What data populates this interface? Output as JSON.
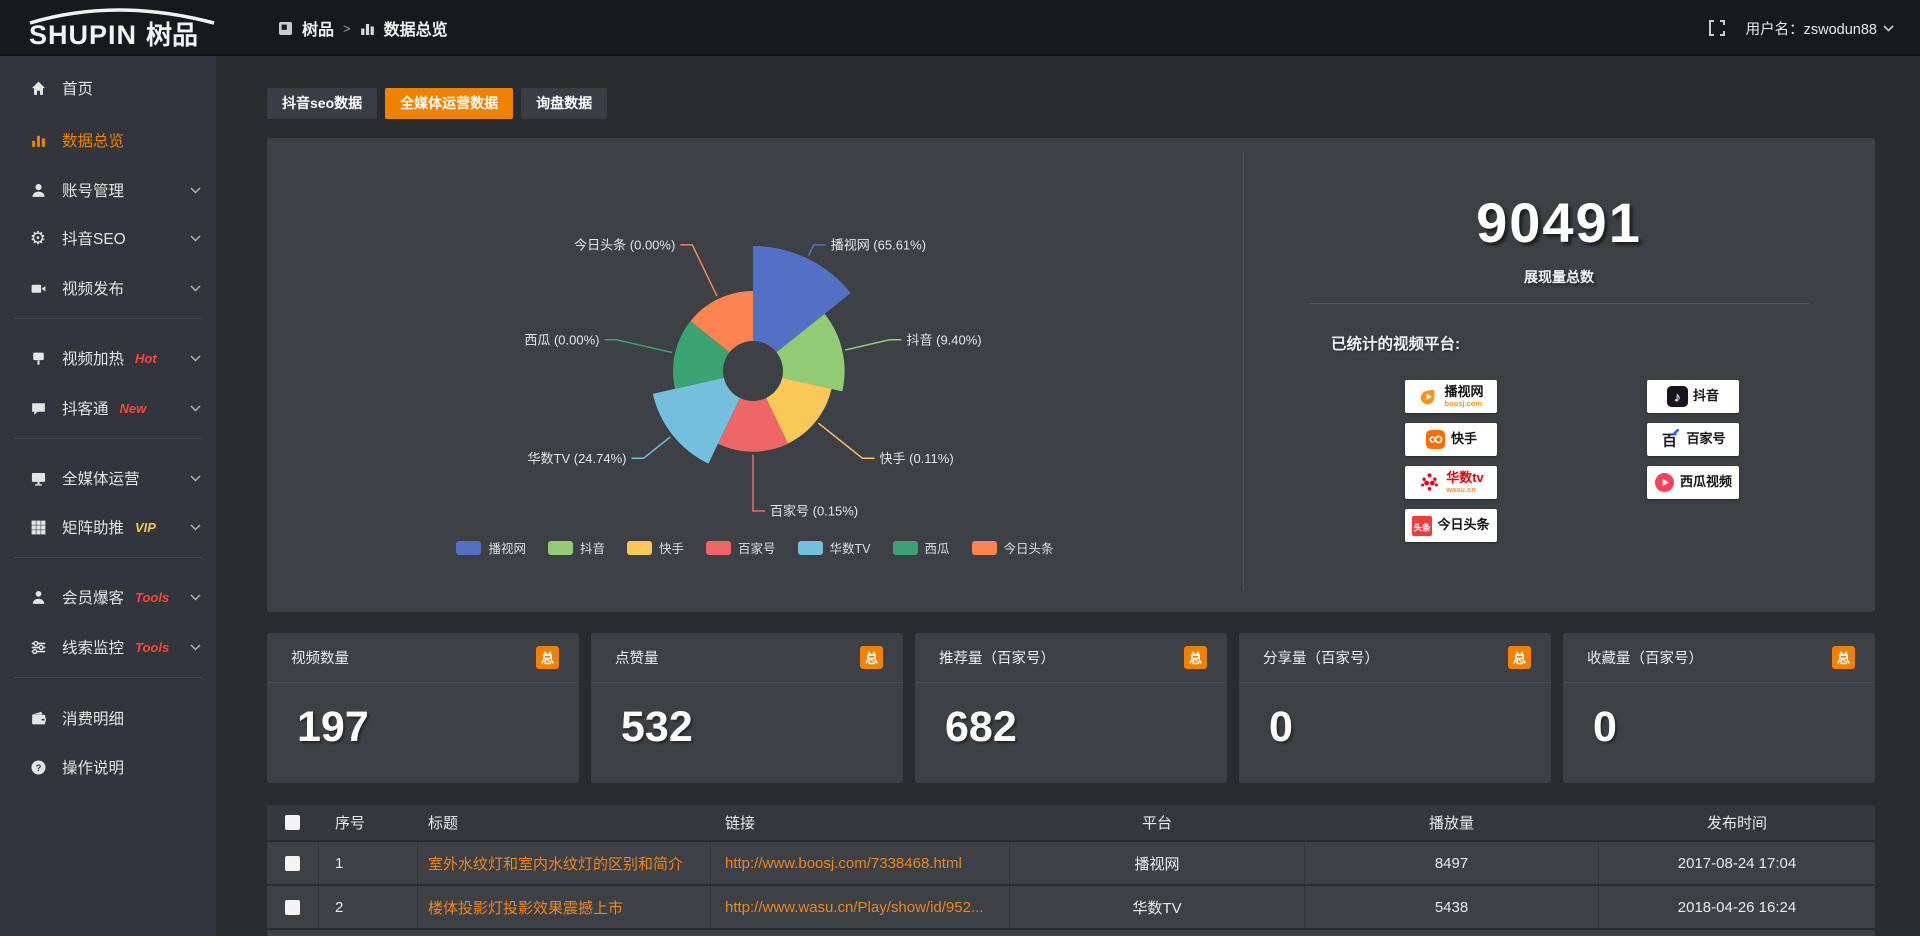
{
  "topbar": {
    "logo_primary": "SHUPIN",
    "logo_secondary": "树品",
    "breadcrumb": {
      "root": "树品",
      "separator": ">",
      "current": "数据总览"
    },
    "username": "用户名：zswodun88"
  },
  "sidebar": {
    "items": [
      {
        "key": "home",
        "label": "首页",
        "icon": "home-icon"
      },
      {
        "key": "data-overview",
        "label": "数据总览",
        "icon": "bar-chart-icon",
        "active": true
      },
      {
        "key": "account-manage",
        "label": "账号管理",
        "icon": "user-icon",
        "chevron": true
      },
      {
        "key": "douyin-seo",
        "label": "抖音SEO",
        "icon": "gear-icon",
        "chevron": true
      },
      {
        "key": "video-publish",
        "label": "视频发布",
        "icon": "video-icon",
        "chevron": true,
        "divider_after": true
      },
      {
        "key": "video-boost",
        "label": "视频加热",
        "icon": "sign-icon",
        "chevron": true,
        "badge": "Hot",
        "badge_color": "#ff4538"
      },
      {
        "key": "douketong",
        "label": "抖客通",
        "icon": "chat-icon",
        "chevron": true,
        "badge": "New",
        "badge_color": "#ff4538",
        "divider_after": true
      },
      {
        "key": "omni-media",
        "label": "全媒体运营",
        "icon": "monitor-icon",
        "chevron": true
      },
      {
        "key": "matrix-assist",
        "label": "矩阵助推",
        "icon": "grid-icon",
        "chevron": true,
        "badge": "VIP",
        "badge_color": "#f6c44a",
        "divider_after": true
      },
      {
        "key": "member-burst",
        "label": "会员爆客",
        "icon": "member-icon",
        "chevron": true,
        "badge": "Tools",
        "badge_color": "#ff4538"
      },
      {
        "key": "lead-monitor",
        "label": "线索监控",
        "icon": "sliders-icon",
        "chevron": true,
        "badge": "Tools",
        "badge_color": "#ff4538",
        "divider_after": true
      },
      {
        "key": "expense-detail",
        "label": "消费明细",
        "icon": "wallet-icon"
      },
      {
        "key": "operation-guide",
        "label": "操作说明",
        "icon": "question-icon"
      }
    ]
  },
  "tabs": [
    {
      "key": "douyin-seo-data",
      "label": "抖音seo数据",
      "active": false
    },
    {
      "key": "omni-media-data",
      "label": "全媒体运营数据",
      "active": true
    },
    {
      "key": "inquiry-data",
      "label": "询盘数据",
      "active": false
    }
  ],
  "chart_data": {
    "type": "pie",
    "variant": "nightingale-rose",
    "categories": [
      "播视网",
      "抖音",
      "快手",
      "百家号",
      "华数TV",
      "西瓜",
      "今日头条"
    ],
    "values": [
      65.61,
      9.4,
      0.11,
      0.15,
      24.74,
      0.0,
      0.0
    ],
    "unit": "%",
    "colors": [
      "#5470c6",
      "#91cc75",
      "#fac858",
      "#ee6666",
      "#73c0de",
      "#3ba272",
      "#fc8452"
    ],
    "label_format": "{name} ({value}%)",
    "legend": [
      "播视网",
      "抖音",
      "快手",
      "百家号",
      "华数TV",
      "西瓜",
      "今日头条"
    ],
    "legend_position": "bottom"
  },
  "summary": {
    "total_value": "90491",
    "total_label": "展现量总数",
    "platforms_title": "已统计的视频平台:",
    "platform_columns": [
      [
        {
          "icon": "boosj-icon",
          "name": "播视网",
          "sub": "boosj.com"
        },
        {
          "icon": "kuaishou-icon",
          "name": "快手"
        },
        {
          "icon": "wasu-icon",
          "name": "华数tv",
          "sub": "wasu.cn",
          "name_color": "#e60012"
        },
        {
          "icon": "toutiao-icon",
          "name": "今日头条"
        }
      ],
      [
        {
          "icon": "douyin-icon",
          "name": "抖音"
        },
        {
          "icon": "baijiahao-icon",
          "name": "百家号"
        },
        {
          "icon": "xigua-icon",
          "name": "西瓜视频"
        }
      ]
    ]
  },
  "stat_cards": [
    {
      "label": "视频数量",
      "badge": "总",
      "value": "197"
    },
    {
      "label": "点赞量",
      "badge": "总",
      "value": "532"
    },
    {
      "label": "推荐量（百家号）",
      "badge": "总",
      "value": "682"
    },
    {
      "label": "分享量（百家号）",
      "badge": "总",
      "value": "0"
    },
    {
      "label": "收藏量（百家号）",
      "badge": "总",
      "value": "0"
    }
  ],
  "table": {
    "headers": [
      "序号",
      "标题",
      "链接",
      "平台",
      "播放量",
      "发布时间"
    ],
    "rows": [
      {
        "index": "1",
        "title": "室外水纹灯和室内水纹灯的区别和简介",
        "link": "http://www.boosj.com/7338468.html",
        "platform": "播视网",
        "plays": "8497",
        "time": "2017-08-24 17:04"
      },
      {
        "index": "2",
        "title": "楼体投影灯投影效果震撼上市",
        "link": "http://www.wasu.cn/Play/show/id/952...",
        "platform": "华数TV",
        "plays": "5438",
        "time": "2018-04-26 16:24"
      }
    ]
  }
}
